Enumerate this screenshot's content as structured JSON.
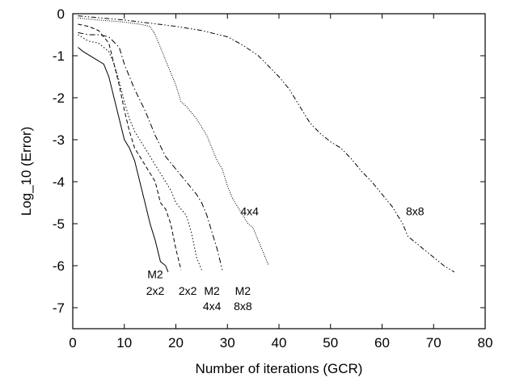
{
  "chart_data": {
    "type": "line",
    "title": "",
    "xlabel": "Number of iterations (GCR)",
    "ylabel": "Log_10 (Error)",
    "xlim": [
      0,
      80
    ],
    "ylim": [
      -7.5,
      0
    ],
    "xticks": [
      0,
      10,
      20,
      30,
      40,
      50,
      60,
      70,
      80
    ],
    "yticks": [
      0,
      -1,
      -2,
      -3,
      -4,
      -5,
      -6,
      -7
    ],
    "grid": false,
    "series": [
      {
        "style": "solid",
        "points": [
          [
            1,
            -0.8
          ],
          [
            2,
            -0.9
          ],
          [
            4,
            -1.05
          ],
          [
            6,
            -1.2
          ],
          [
            7,
            -1.5
          ],
          [
            8,
            -2.0
          ],
          [
            9,
            -2.5
          ],
          [
            10,
            -3.0
          ],
          [
            11,
            -3.2
          ],
          [
            12,
            -3.5
          ],
          [
            13,
            -4.0
          ],
          [
            14,
            -4.5
          ],
          [
            15,
            -5.0
          ],
          [
            16,
            -5.4
          ],
          [
            17,
            -5.9
          ],
          [
            18,
            -6.0
          ],
          [
            18.5,
            -6.15
          ]
        ]
      },
      {
        "style": "dashed",
        "points": [
          [
            1,
            -0.25
          ],
          [
            3,
            -0.3
          ],
          [
            5,
            -0.4
          ],
          [
            7,
            -0.7
          ],
          [
            8,
            -1.2
          ],
          [
            9,
            -1.7
          ],
          [
            10,
            -2.3
          ],
          [
            11,
            -2.8
          ],
          [
            12,
            -3.2
          ],
          [
            13,
            -3.4
          ],
          [
            14,
            -3.6
          ],
          [
            15,
            -3.8
          ],
          [
            16,
            -4.0
          ],
          [
            17,
            -4.5
          ],
          [
            18,
            -4.65
          ],
          [
            19,
            -5.0
          ],
          [
            20,
            -5.6
          ],
          [
            21,
            -6.1
          ]
        ]
      },
      {
        "style": "dotted",
        "points": [
          [
            1,
            -0.5
          ],
          [
            3,
            -0.65
          ],
          [
            5,
            -0.7
          ],
          [
            7,
            -0.9
          ],
          [
            8,
            -1.2
          ],
          [
            9,
            -1.6
          ],
          [
            10,
            -2.1
          ],
          [
            11,
            -2.5
          ],
          [
            12,
            -2.8
          ],
          [
            13,
            -3.0
          ],
          [
            15,
            -3.4
          ],
          [
            17,
            -3.8
          ],
          [
            19,
            -4.2
          ],
          [
            20,
            -4.5
          ],
          [
            22,
            -4.8
          ],
          [
            23,
            -5.2
          ],
          [
            24,
            -5.8
          ],
          [
            25,
            -6.1
          ]
        ]
      },
      {
        "style": "dash-dot",
        "points": [
          [
            1,
            -0.45
          ],
          [
            3,
            -0.5
          ],
          [
            5,
            -0.5
          ],
          [
            7,
            -0.55
          ],
          [
            9,
            -0.8
          ],
          [
            10,
            -1.2
          ],
          [
            11,
            -1.5
          ],
          [
            12,
            -1.8
          ],
          [
            14,
            -2.3
          ],
          [
            16,
            -2.9
          ],
          [
            18,
            -3.4
          ],
          [
            20,
            -3.7
          ],
          [
            22,
            -4.0
          ],
          [
            24,
            -4.3
          ],
          [
            25,
            -4.5
          ],
          [
            26,
            -4.8
          ],
          [
            27,
            -5.2
          ],
          [
            28,
            -5.6
          ],
          [
            29,
            -6.1
          ]
        ]
      },
      {
        "style": "fine-dotted",
        "points": [
          [
            1,
            -0.1
          ],
          [
            5,
            -0.15
          ],
          [
            10,
            -0.2
          ],
          [
            13,
            -0.25
          ],
          [
            15,
            -0.3
          ],
          [
            16,
            -0.5
          ],
          [
            17,
            -0.8
          ],
          [
            18,
            -1.1
          ],
          [
            19,
            -1.4
          ],
          [
            20,
            -1.7
          ],
          [
            21,
            -2.1
          ],
          [
            22,
            -2.2
          ],
          [
            24,
            -2.5
          ],
          [
            26,
            -2.9
          ],
          [
            27,
            -3.2
          ],
          [
            28,
            -3.5
          ],
          [
            29,
            -3.7
          ],
          [
            30,
            -4.1
          ],
          [
            31,
            -4.4
          ],
          [
            32,
            -4.6
          ],
          [
            33,
            -4.8
          ],
          [
            34,
            -5.0
          ],
          [
            35,
            -5.1
          ],
          [
            36,
            -5.4
          ],
          [
            37,
            -5.7
          ],
          [
            38,
            -6.0
          ]
        ]
      },
      {
        "style": "dash-dot-dot",
        "points": [
          [
            1,
            -0.05
          ],
          [
            10,
            -0.15
          ],
          [
            20,
            -0.3
          ],
          [
            25,
            -0.4
          ],
          [
            30,
            -0.55
          ],
          [
            33,
            -0.75
          ],
          [
            36,
            -1.0
          ],
          [
            38,
            -1.25
          ],
          [
            40,
            -1.5
          ],
          [
            42,
            -1.8
          ],
          [
            44,
            -2.2
          ],
          [
            46,
            -2.6
          ],
          [
            48,
            -2.85
          ],
          [
            50,
            -3.05
          ],
          [
            52,
            -3.2
          ],
          [
            54,
            -3.45
          ],
          [
            56,
            -3.75
          ],
          [
            58,
            -4.0
          ],
          [
            60,
            -4.3
          ],
          [
            62,
            -4.6
          ],
          [
            64,
            -5.0
          ],
          [
            65,
            -5.3
          ],
          [
            66,
            -5.4
          ],
          [
            68,
            -5.6
          ],
          [
            70,
            -5.8
          ],
          [
            72,
            -6.0
          ],
          [
            74,
            -6.15
          ]
        ]
      }
    ],
    "annotations": [
      {
        "text": "M2",
        "x": 16,
        "y": -6.2
      },
      {
        "text": "2x2",
        "x": 16,
        "y": -6.6
      },
      {
        "text": "2x2",
        "x": 22.3,
        "y": -6.6
      },
      {
        "text": "M2",
        "x": 27,
        "y": -6.6
      },
      {
        "text": "4x4",
        "x": 27,
        "y": -6.96
      },
      {
        "text": "M2",
        "x": 33,
        "y": -6.6
      },
      {
        "text": "8x8",
        "x": 33,
        "y": -6.96
      },
      {
        "text": "4x4",
        "x": 34.3,
        "y": -4.7
      },
      {
        "text": "8x8",
        "x": 66.4,
        "y": -4.7
      }
    ]
  }
}
